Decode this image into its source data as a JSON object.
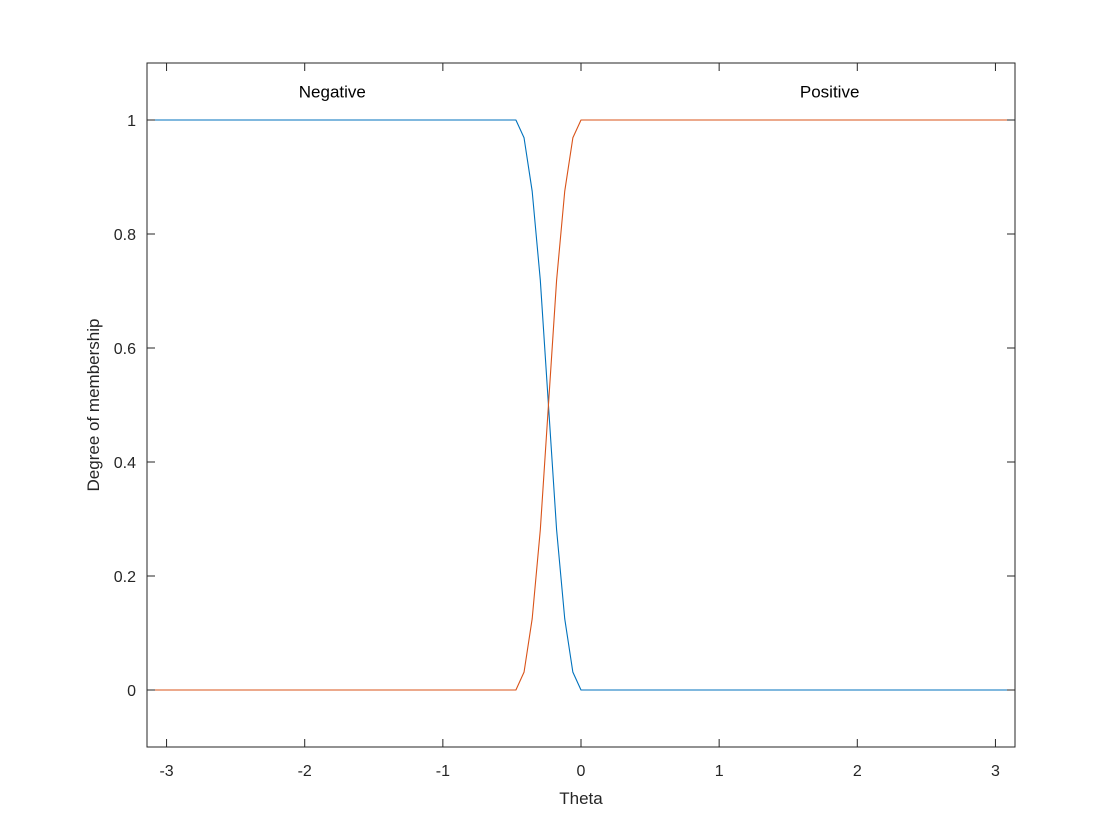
{
  "chart_data": {
    "type": "line",
    "title": "",
    "xlabel": "Theta",
    "ylabel": "Degree of membership",
    "xlim": [
      -3.14159,
      3.14159
    ],
    "ylim": [
      -0.1,
      1.1
    ],
    "xticks": [
      -3,
      -2,
      -1,
      0,
      1,
      2,
      3
    ],
    "yticks": [
      0,
      0.2,
      0.4,
      0.6,
      0.8,
      1
    ],
    "grid": false,
    "legend": "none",
    "series": [
      {
        "name": "Negative",
        "color": "#0072BD",
        "label_at": [
          -1.8,
          1.05
        ],
        "shape": "z-shaped",
        "x": [
          -3.14159,
          -0.4712,
          -0.4123,
          -0.3534,
          -0.2945,
          -0.2356,
          -0.1767,
          -0.1178,
          -0.0589,
          0,
          0.0589,
          0.1178,
          0.1767,
          0.2356,
          0.2945,
          0.3534,
          0.4123,
          0.4712,
          3.14159
        ],
        "y": [
          1,
          1,
          0.9688,
          0.875,
          0.7188,
          0.5,
          0.2813,
          0.125,
          0.0313,
          0,
          0,
          0,
          0,
          0,
          0,
          0,
          0,
          0,
          0
        ]
      },
      {
        "name": "Positive",
        "color": "#D95319",
        "label_at": [
          1.8,
          1.05
        ],
        "shape": "s-shaped",
        "x": [
          -3.14159,
          -0.4712,
          -0.4123,
          -0.3534,
          -0.2945,
          -0.2356,
          -0.1767,
          -0.1178,
          -0.0589,
          0,
          0.0589,
          0.1178,
          0.1767,
          0.2356,
          0.2945,
          0.3534,
          0.4123,
          0.4712,
          3.14159
        ],
        "y": [
          0,
          0,
          0.0313,
          0.125,
          0.2813,
          0.5,
          0.7188,
          0.875,
          0.9688,
          1,
          1,
          1,
          1,
          1,
          1,
          1,
          1,
          1,
          1
        ]
      }
    ]
  }
}
